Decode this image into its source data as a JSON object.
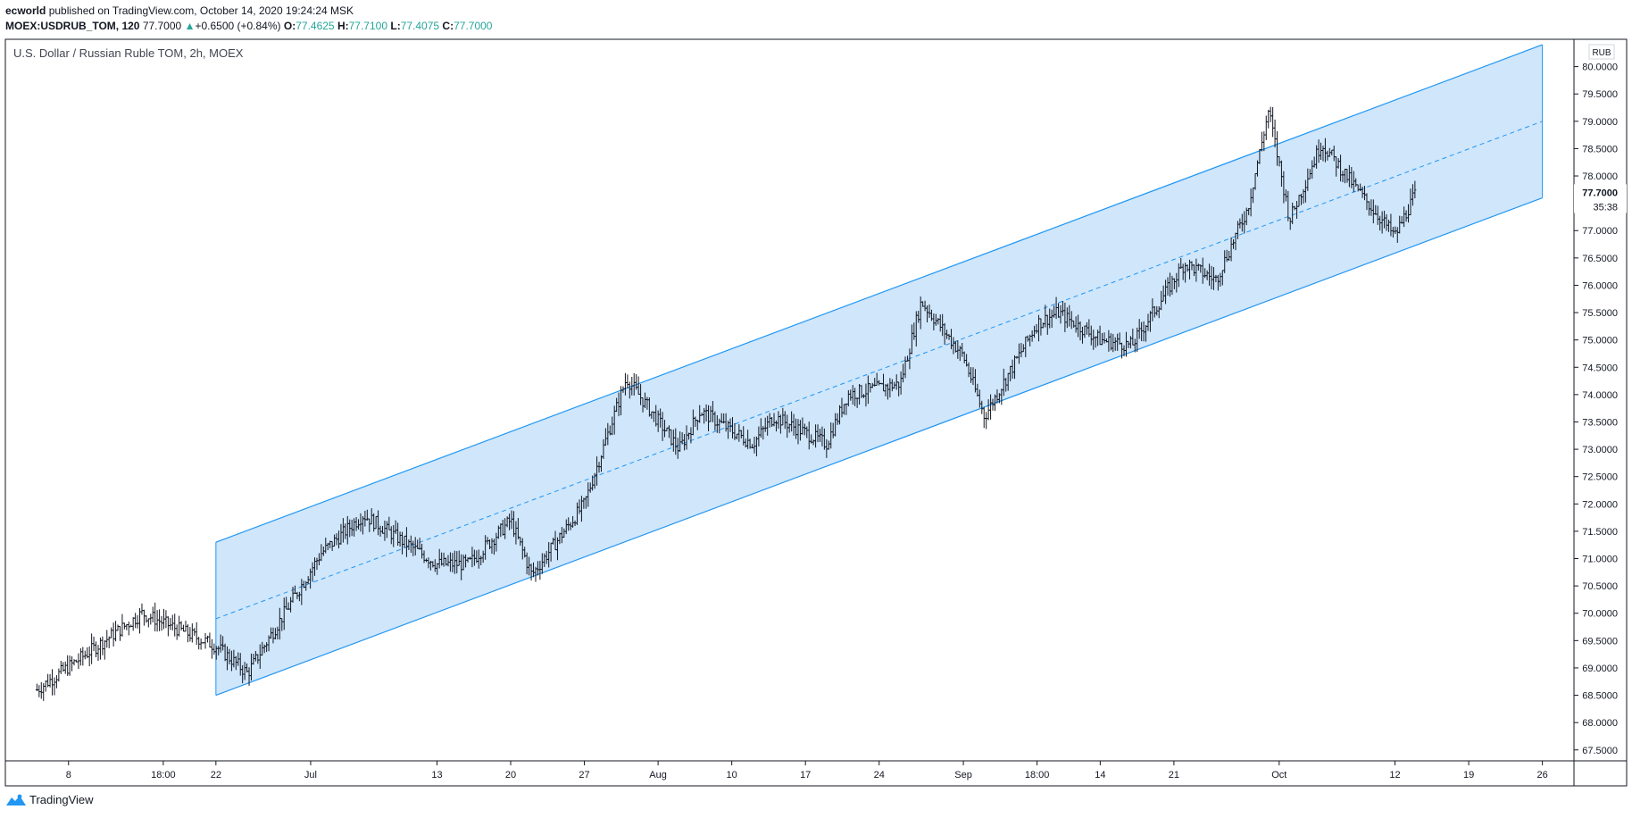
{
  "header": {
    "author": "ecworld",
    "published_text": "published on TradingView.com, October 14, 2020 19:24:24 MSK"
  },
  "symbol_line": {
    "symbol": "MOEX:USDRUB_TOM, 120",
    "last": "77.7000",
    "change_arrow": "▲",
    "change": "+0.6500 (+0.84%)",
    "o_label": "O:",
    "o": "77.4625",
    "h_label": "H:",
    "h": "77.7100",
    "l_label": "L:",
    "l": "77.4075",
    "c_label": "C:",
    "c": "77.7000"
  },
  "brand": {
    "name": "TradingView"
  },
  "colors": {
    "channel_fill": "#cfe6fb",
    "channel_line": "#2196f3",
    "candles": "#131722",
    "up_text": "#26a69a",
    "last_price_tag": "#131722"
  },
  "chart_data": {
    "type": "line",
    "title": "U.S. Dollar / Russian Ruble TOM, 2h, MOEX",
    "currency": "RUB",
    "last_price_label": "77.7000",
    "countdown": "35:38",
    "ylim": [
      67.3,
      80.5
    ],
    "y_ticks": [
      "80.0000",
      "79.5000",
      "79.0000",
      "78.5000",
      "78.0000",
      "77.5000",
      "77.0000",
      "76.5000",
      "76.0000",
      "75.5000",
      "75.0000",
      "74.5000",
      "74.0000",
      "73.5000",
      "73.0000",
      "72.5000",
      "72.0000",
      "71.5000",
      "71.0000",
      "70.5000",
      "70.0000",
      "69.5000",
      "69.0000",
      "68.5000",
      "68.0000",
      "67.5000"
    ],
    "x_ticks": [
      "8",
      "18:00",
      "22",
      "Jul",
      "13",
      "20",
      "27",
      "Aug",
      "10",
      "17",
      "24",
      "Sep",
      "18:00",
      "14",
      "21",
      "Oct",
      "12",
      "19",
      "26"
    ],
    "x": [
      "2020-06-05",
      "2020-06-15",
      "2020-06-22",
      "2020-06-25",
      "2020-07-02",
      "2020-07-06",
      "2020-07-13",
      "2020-07-16",
      "2020-07-20",
      "2020-07-22",
      "2020-07-27",
      "2020-07-31",
      "2020-08-05",
      "2020-08-07",
      "2020-08-12",
      "2020-08-14",
      "2020-08-19",
      "2020-08-21",
      "2020-08-26",
      "2020-08-28",
      "2020-09-01",
      "2020-09-03",
      "2020-09-08",
      "2020-09-10",
      "2020-09-14",
      "2020-09-17",
      "2020-09-22",
      "2020-09-25",
      "2020-09-28",
      "2020-09-30",
      "2020-10-02",
      "2020-10-05",
      "2020-10-09",
      "2020-10-12",
      "2020-10-14"
    ],
    "series": [
      {
        "values": [
          68.6,
          70.0,
          69.4,
          68.9,
          71.1,
          71.8,
          70.9,
          70.9,
          71.7,
          70.7,
          72.0,
          74.3,
          73.0,
          73.7,
          73.1,
          73.6,
          73.1,
          74.0,
          74.2,
          75.7,
          74.7,
          73.6,
          75.3,
          75.5,
          75.0,
          74.9,
          76.4,
          76.1,
          77.4,
          79.2,
          77.2,
          78.6,
          77.6,
          76.9,
          77.7
        ]
      }
    ],
    "channel": {
      "start_x": "2020-06-22",
      "end_x": "2020-10-26",
      "upper": [
        71.3,
        80.4
      ],
      "middle": [
        69.9,
        79.0
      ],
      "lower": [
        68.5,
        77.6
      ]
    }
  }
}
